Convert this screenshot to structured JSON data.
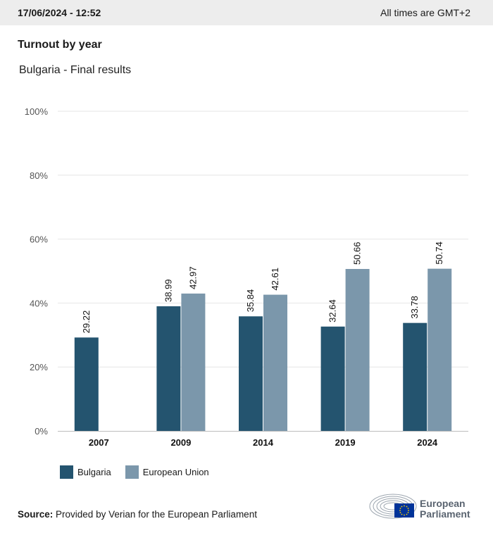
{
  "header": {
    "timestamp": "17/06/2024 - 12:52",
    "timezone_note": "All times are GMT+2"
  },
  "title": "Turnout by year",
  "subtitle": "Bulgaria - Final results",
  "colors": {
    "bulgaria": "#24546f",
    "eu": "#7b97ab",
    "grid": "#e6e6e6",
    "axis": "#bdbdbd"
  },
  "chart_data": {
    "type": "bar",
    "categories": [
      "2007",
      "2009",
      "2014",
      "2019",
      "2024"
    ],
    "series": [
      {
        "name": "Bulgaria",
        "values": [
          29.22,
          38.99,
          35.84,
          32.64,
          33.78
        ]
      },
      {
        "name": "European Union",
        "values": [
          null,
          42.97,
          42.61,
          50.66,
          50.74
        ]
      }
    ],
    "ylim": [
      0,
      100
    ],
    "yticks": [
      "0%",
      "20%",
      "40%",
      "60%",
      "80%",
      "100%"
    ],
    "title": "Turnout by year",
    "xlabel": "",
    "ylabel": "",
    "legend": "bottom-left",
    "grid": true
  },
  "legend": {
    "bulgaria": "Bulgaria",
    "eu": "European Union"
  },
  "source": {
    "label": "Source:",
    "text": "Provided by Verian for the European Parliament"
  },
  "logo": {
    "line1": "European",
    "line2": "Parliament"
  }
}
